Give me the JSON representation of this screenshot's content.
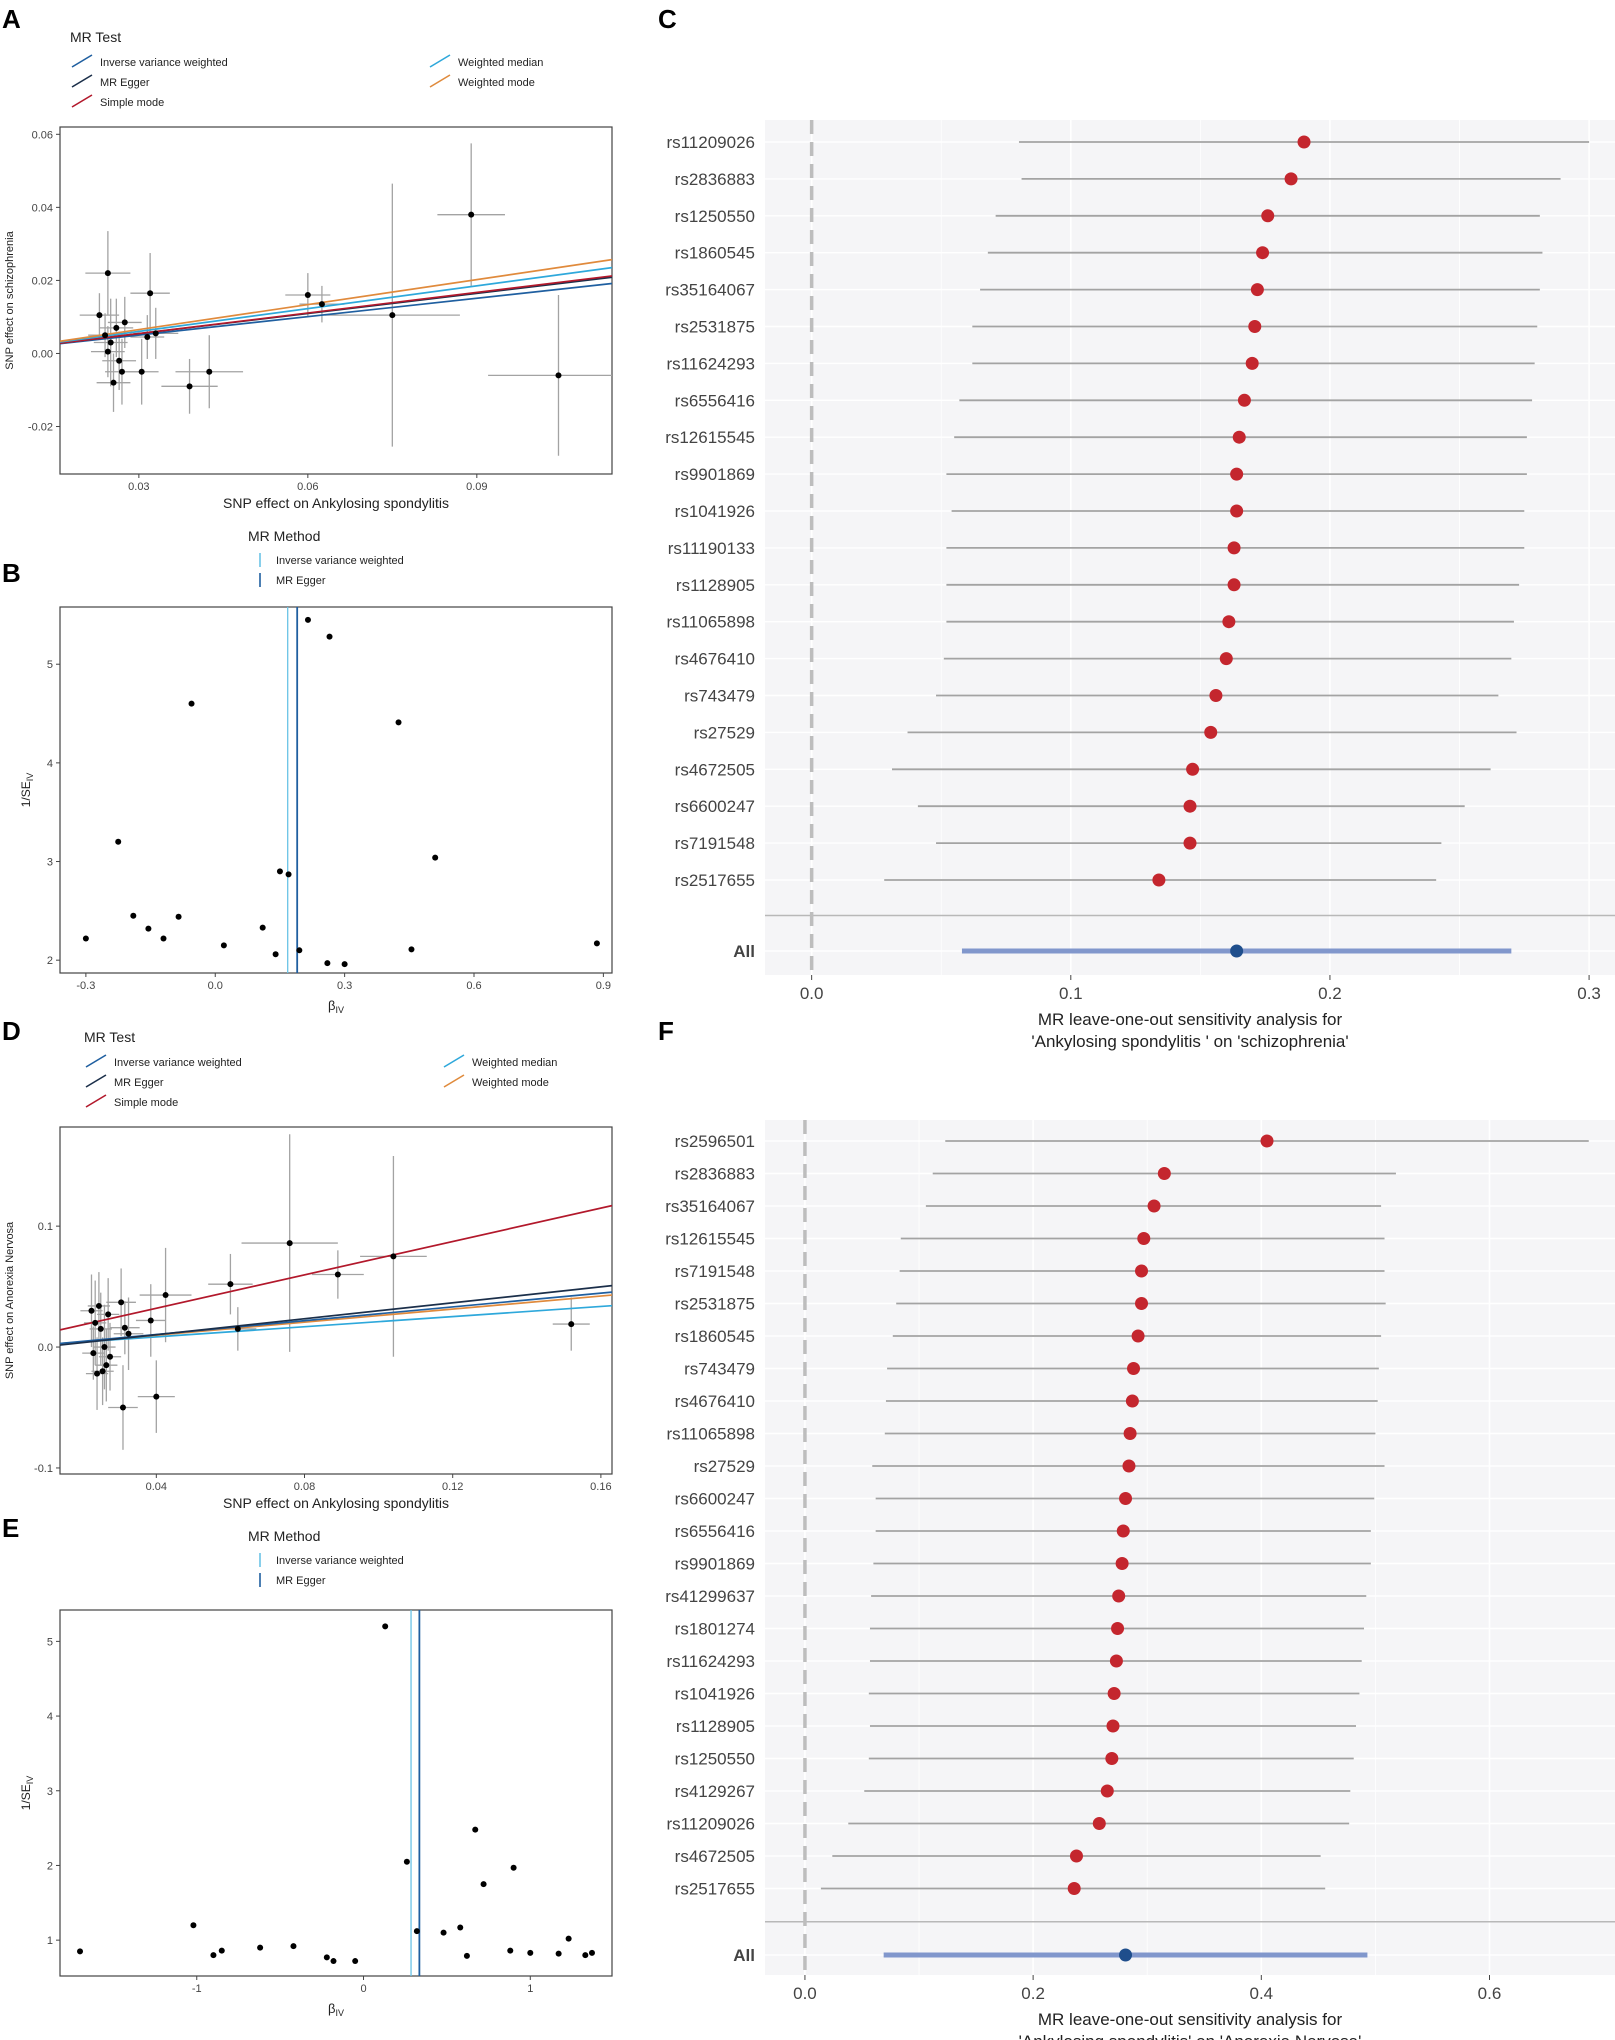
{
  "colors": {
    "ivw": "#1f5fa0",
    "egger": "#1b2f4a",
    "simple_mode": "#b2182b",
    "weighted_median": "#2ea8db",
    "weighted_mode": "#e08a3c",
    "ivw_light": "#6ac3e6",
    "red_point": "#c4262e",
    "blue_point": "#1f4e8c",
    "ci_grey": "#a3a3a3",
    "all_ci": "#8197cc",
    "funnel_point": "#000000",
    "panel_bg": "#f5f5f7"
  },
  "chart_data": [
    {
      "panel": "A",
      "type": "scatter",
      "legend_title": "MR Test",
      "legend": [
        "Inverse variance weighted",
        "MR Egger",
        "Simple mode",
        "Weighted median",
        "Weighted mode"
      ],
      "xlabel": "SNP effect on Ankylosing spondylitis",
      "ylabel": "SNP effect on schizophrenia",
      "xlim": [
        0.016,
        0.114
      ],
      "ylim": [
        -0.033,
        0.062
      ],
      "xticks": [
        "0.03",
        "0.06",
        "0.09"
      ],
      "xtick_values": [
        0.03,
        0.06,
        0.09
      ],
      "yticks": [
        "-0.02",
        "0.00",
        "0.02",
        "0.04",
        "0.06"
      ],
      "ytick_values": [
        -0.02,
        0.0,
        0.02,
        0.04,
        0.06
      ],
      "points": [
        {
          "x": 0.0245,
          "y": 0.022,
          "xse": 0.004,
          "yse": 0.0115
        },
        {
          "x": 0.023,
          "y": 0.0105,
          "xse": 0.0035,
          "yse": 0.006
        },
        {
          "x": 0.024,
          "y": 0.005,
          "xse": 0.003,
          "yse": 0.006
        },
        {
          "x": 0.0245,
          "y": 0.0005,
          "xse": 0.003,
          "yse": 0.007
        },
        {
          "x": 0.025,
          "y": 0.003,
          "xse": 0.003,
          "yse": 0.012
        },
        {
          "x": 0.0255,
          "y": -0.008,
          "xse": 0.003,
          "yse": 0.008
        },
        {
          "x": 0.026,
          "y": 0.007,
          "xse": 0.003,
          "yse": 0.008
        },
        {
          "x": 0.0265,
          "y": -0.002,
          "xse": 0.003,
          "yse": 0.008
        },
        {
          "x": 0.027,
          "y": -0.005,
          "xse": 0.003,
          "yse": 0.009
        },
        {
          "x": 0.0275,
          "y": 0.0085,
          "xse": 0.003,
          "yse": 0.007
        },
        {
          "x": 0.0305,
          "y": -0.005,
          "xse": 0.003,
          "yse": 0.009
        },
        {
          "x": 0.0315,
          "y": 0.0045,
          "xse": 0.003,
          "yse": 0.006
        },
        {
          "x": 0.032,
          "y": 0.0165,
          "xse": 0.0035,
          "yse": 0.011
        },
        {
          "x": 0.033,
          "y": 0.0055,
          "xse": 0.004,
          "yse": 0.007
        },
        {
          "x": 0.039,
          "y": -0.009,
          "xse": 0.005,
          "yse": 0.0075
        },
        {
          "x": 0.0425,
          "y": -0.005,
          "xse": 0.006,
          "yse": 0.01
        },
        {
          "x": 0.06,
          "y": 0.016,
          "xse": 0.004,
          "yse": 0.006
        },
        {
          "x": 0.0625,
          "y": 0.0135,
          "xse": 0.004,
          "yse": 0.005
        },
        {
          "x": 0.075,
          "y": 0.0105,
          "xse": 0.012,
          "yse": 0.036
        },
        {
          "x": 0.089,
          "y": 0.038,
          "xse": 0.006,
          "yse": 0.0195
        },
        {
          "x": 0.1045,
          "y": -0.006,
          "xse": 0.0125,
          "yse": 0.022
        }
      ],
      "lines": [
        {
          "name": "Inverse variance weighted",
          "intercept": 0.0,
          "slope": 0.168
        },
        {
          "name": "MR Egger",
          "intercept": -0.0001,
          "slope": 0.184
        },
        {
          "name": "Simple mode",
          "intercept": -0.0002,
          "slope": 0.188
        },
        {
          "name": "Weighted median",
          "intercept": -0.0002,
          "slope": 0.208
        },
        {
          "name": "Weighted mode",
          "intercept": -0.0003,
          "slope": 0.228
        }
      ]
    },
    {
      "panel": "B",
      "type": "scatter",
      "legend_title": "MR Method",
      "legend": [
        "Inverse variance weighted",
        "MR Egger"
      ],
      "xlabel": "β",
      "xlabel_sub": "IV",
      "ylabel": "1/SE",
      "ylabel_sub": "IV",
      "xlim": [
        -0.36,
        0.92
      ],
      "ylim": [
        1.87,
        5.58
      ],
      "xticks": [
        "-0.3",
        "0.0",
        "0.3",
        "0.6",
        "0.9"
      ],
      "xtick_values": [
        -0.3,
        0.0,
        0.3,
        0.6,
        0.9
      ],
      "yticks": [
        "2",
        "3",
        "4",
        "5"
      ],
      "ytick_values": [
        2,
        3,
        4,
        5
      ],
      "vlines": [
        {
          "name": "Inverse variance weighted",
          "x": 0.168
        },
        {
          "name": "MR Egger",
          "x": 0.19
        }
      ],
      "points": [
        {
          "x": -0.3,
          "y": 2.22
        },
        {
          "x": -0.225,
          "y": 3.2
        },
        {
          "x": -0.19,
          "y": 2.45
        },
        {
          "x": -0.155,
          "y": 2.32
        },
        {
          "x": -0.12,
          "y": 2.22
        },
        {
          "x": -0.085,
          "y": 2.44
        },
        {
          "x": -0.055,
          "y": 4.6
        },
        {
          "x": 0.02,
          "y": 2.15
        },
        {
          "x": 0.11,
          "y": 2.33
        },
        {
          "x": 0.14,
          "y": 2.06
        },
        {
          "x": 0.15,
          "y": 2.9
        },
        {
          "x": 0.17,
          "y": 2.87
        },
        {
          "x": 0.195,
          "y": 2.1
        },
        {
          "x": 0.215,
          "y": 5.45
        },
        {
          "x": 0.26,
          "y": 1.97
        },
        {
          "x": 0.265,
          "y": 5.28
        },
        {
          "x": 0.3,
          "y": 1.96
        },
        {
          "x": 0.425,
          "y": 4.41
        },
        {
          "x": 0.455,
          "y": 2.11
        },
        {
          "x": 0.51,
          "y": 3.04
        },
        {
          "x": 0.885,
          "y": 2.17
        }
      ]
    },
    {
      "panel": "C",
      "type": "forest",
      "xlabel_line1": "MR leave-one-out sensitivity analysis for",
      "xlabel_line2": "'Ankylosing spondylitis ' on 'schizophrenia'",
      "xlim": [
        -0.018,
        0.31
      ],
      "xticks": [
        "0.0",
        "0.1",
        "0.2",
        "0.3"
      ],
      "xtick_values": [
        0.0,
        0.1,
        0.2,
        0.3
      ],
      "rows": [
        {
          "label": "rs11209026",
          "est": 0.19,
          "lo": 0.08,
          "hi": 0.3
        },
        {
          "label": "rs2836883",
          "est": 0.185,
          "lo": 0.081,
          "hi": 0.289
        },
        {
          "label": "rs1250550",
          "est": 0.176,
          "lo": 0.071,
          "hi": 0.281
        },
        {
          "label": "rs1860545",
          "est": 0.174,
          "lo": 0.068,
          "hi": 0.282
        },
        {
          "label": "rs35164067",
          "est": 0.172,
          "lo": 0.065,
          "hi": 0.281
        },
        {
          "label": "rs2531875",
          "est": 0.171,
          "lo": 0.062,
          "hi": 0.28
        },
        {
          "label": "rs11624293",
          "est": 0.17,
          "lo": 0.062,
          "hi": 0.279
        },
        {
          "label": "rs6556416",
          "est": 0.167,
          "lo": 0.057,
          "hi": 0.278
        },
        {
          "label": "rs12615545",
          "est": 0.165,
          "lo": 0.055,
          "hi": 0.276
        },
        {
          "label": "rs9901869",
          "est": 0.164,
          "lo": 0.052,
          "hi": 0.276
        },
        {
          "label": "rs1041926",
          "est": 0.164,
          "lo": 0.054,
          "hi": 0.275
        },
        {
          "label": "rs11190133",
          "est": 0.163,
          "lo": 0.052,
          "hi": 0.275
        },
        {
          "label": "rs1128905",
          "est": 0.163,
          "lo": 0.052,
          "hi": 0.273
        },
        {
          "label": "rs11065898",
          "est": 0.161,
          "lo": 0.052,
          "hi": 0.271
        },
        {
          "label": "rs4676410",
          "est": 0.16,
          "lo": 0.051,
          "hi": 0.27
        },
        {
          "label": "rs743479",
          "est": 0.156,
          "lo": 0.048,
          "hi": 0.265
        },
        {
          "label": "rs27529",
          "est": 0.154,
          "lo": 0.037,
          "hi": 0.272
        },
        {
          "label": "rs4672505",
          "est": 0.147,
          "lo": 0.031,
          "hi": 0.262
        },
        {
          "label": "rs6600247",
          "est": 0.146,
          "lo": 0.041,
          "hi": 0.252
        },
        {
          "label": "rs7191548",
          "est": 0.146,
          "lo": 0.048,
          "hi": 0.243
        },
        {
          "label": "rs2517655",
          "est": 0.134,
          "lo": 0.028,
          "hi": 0.241
        }
      ],
      "all": {
        "label": "All",
        "est": 0.164,
        "lo": 0.058,
        "hi": 0.27
      }
    },
    {
      "panel": "D",
      "type": "scatter",
      "legend_title": "MR Test",
      "legend": [
        "Inverse variance weighted",
        "MR Egger",
        "Simple mode",
        "Weighted median",
        "Weighted mode"
      ],
      "xlabel": "SNP effect on Ankylosing spondylitis",
      "ylabel": "SNP effect on Anorexia Nervosa",
      "xlim": [
        0.014,
        0.163
      ],
      "ylim": [
        -0.105,
        0.182
      ],
      "xticks": [
        "0.04",
        "0.08",
        "0.12",
        "0.16"
      ],
      "xtick_values": [
        0.04,
        0.08,
        0.12,
        0.16
      ],
      "yticks": [
        "-0.1",
        "0.0",
        "0.1"
      ],
      "ytick_values": [
        -0.1,
        0.0,
        0.1
      ],
      "points": [
        {
          "x": 0.0225,
          "y": 0.03,
          "xse": 0.003,
          "yse": 0.03
        },
        {
          "x": 0.023,
          "y": -0.005,
          "xse": 0.003,
          "yse": 0.022
        },
        {
          "x": 0.0235,
          "y": 0.02,
          "xse": 0.003,
          "yse": 0.035
        },
        {
          "x": 0.024,
          "y": -0.022,
          "xse": 0.003,
          "yse": 0.03
        },
        {
          "x": 0.0245,
          "y": 0.034,
          "xse": 0.003,
          "yse": 0.028
        },
        {
          "x": 0.025,
          "y": 0.015,
          "xse": 0.003,
          "yse": 0.03
        },
        {
          "x": 0.0255,
          "y": -0.02,
          "xse": 0.003,
          "yse": 0.028
        },
        {
          "x": 0.026,
          "y": 0.0,
          "xse": 0.003,
          "yse": 0.035
        },
        {
          "x": 0.0265,
          "y": -0.015,
          "xse": 0.003,
          "yse": 0.03
        },
        {
          "x": 0.027,
          "y": 0.027,
          "xse": 0.003,
          "yse": 0.03
        },
        {
          "x": 0.0275,
          "y": -0.008,
          "xse": 0.003,
          "yse": 0.028
        },
        {
          "x": 0.0305,
          "y": 0.037,
          "xse": 0.004,
          "yse": 0.028
        },
        {
          "x": 0.031,
          "y": -0.05,
          "xse": 0.004,
          "yse": 0.035
        },
        {
          "x": 0.0315,
          "y": 0.016,
          "xse": 0.004,
          "yse": 0.022
        },
        {
          "x": 0.0325,
          "y": 0.011,
          "xse": 0.004,
          "yse": 0.03
        },
        {
          "x": 0.0385,
          "y": 0.022,
          "xse": 0.004,
          "yse": 0.03
        },
        {
          "x": 0.04,
          "y": -0.041,
          "xse": 0.005,
          "yse": 0.03
        },
        {
          "x": 0.0425,
          "y": 0.043,
          "xse": 0.007,
          "yse": 0.039
        },
        {
          "x": 0.06,
          "y": 0.052,
          "xse": 0.006,
          "yse": 0.025
        },
        {
          "x": 0.062,
          "y": 0.015,
          "xse": 0.005,
          "yse": 0.018
        },
        {
          "x": 0.076,
          "y": 0.086,
          "xse": 0.013,
          "yse": 0.09
        },
        {
          "x": 0.089,
          "y": 0.06,
          "xse": 0.007,
          "yse": 0.02
        },
        {
          "x": 0.104,
          "y": 0.075,
          "xse": 0.009,
          "yse": 0.083
        },
        {
          "x": 0.152,
          "y": 0.019,
          "xse": 0.005,
          "yse": 0.022
        }
      ],
      "lines": [
        {
          "name": "Weighted median",
          "intercept": 0.0,
          "slope": 0.21
        },
        {
          "name": "Weighted mode",
          "intercept": -0.001,
          "slope": 0.27
        },
        {
          "name": "Inverse variance weighted",
          "intercept": -0.001,
          "slope": 0.285
        },
        {
          "name": "MR Egger",
          "intercept": -0.003,
          "slope": 0.33
        },
        {
          "name": "Simple mode",
          "intercept": 0.0045,
          "slope": 0.69
        }
      ]
    },
    {
      "panel": "E",
      "type": "scatter",
      "legend_title": "MR Method",
      "legend": [
        "Inverse variance weighted",
        "MR Egger"
      ],
      "xlabel": "β",
      "xlabel_sub": "IV",
      "ylabel": "1/SE",
      "ylabel_sub": "IV",
      "xlim": [
        -1.82,
        1.49
      ],
      "ylim": [
        0.52,
        5.42
      ],
      "xticks": [
        "-1",
        "0",
        "1"
      ],
      "xtick_values": [
        -1,
        0,
        1
      ],
      "yticks": [
        "1",
        "2",
        "3",
        "4",
        "5"
      ],
      "ytick_values": [
        1,
        2,
        3,
        4,
        5
      ],
      "vlines": [
        {
          "name": "Inverse variance weighted",
          "x": 0.285
        },
        {
          "name": "MR Egger",
          "x": 0.335
        }
      ],
      "points": [
        {
          "x": -1.7,
          "y": 0.85
        },
        {
          "x": -1.02,
          "y": 1.2
        },
        {
          "x": -0.9,
          "y": 0.8
        },
        {
          "x": -0.85,
          "y": 0.86
        },
        {
          "x": -0.62,
          "y": 0.9
        },
        {
          "x": -0.42,
          "y": 0.92
        },
        {
          "x": -0.22,
          "y": 0.77
        },
        {
          "x": -0.18,
          "y": 0.72
        },
        {
          "x": -0.05,
          "y": 0.72
        },
        {
          "x": 0.13,
          "y": 5.2
        },
        {
          "x": 0.26,
          "y": 2.05
        },
        {
          "x": 0.32,
          "y": 1.12
        },
        {
          "x": 0.48,
          "y": 1.1
        },
        {
          "x": 0.58,
          "y": 1.17
        },
        {
          "x": 0.62,
          "y": 0.79
        },
        {
          "x": 0.67,
          "y": 2.48
        },
        {
          "x": 0.72,
          "y": 1.75
        },
        {
          "x": 0.88,
          "y": 0.86
        },
        {
          "x": 0.9,
          "y": 1.97
        },
        {
          "x": 1.0,
          "y": 0.83
        },
        {
          "x": 1.17,
          "y": 0.82
        },
        {
          "x": 1.23,
          "y": 1.02
        },
        {
          "x": 1.33,
          "y": 0.8
        },
        {
          "x": 1.37,
          "y": 0.83
        }
      ]
    },
    {
      "panel": "F",
      "type": "forest",
      "xlabel_line1": "MR leave-one-out sensitivity analysis for",
      "xlabel_line2": "'Ankylosing spondylitis' on 'Anorexia Nervosa'",
      "xlim": [
        -0.035,
        0.71
      ],
      "xticks": [
        "0.0",
        "0.2",
        "0.4",
        "0.6"
      ],
      "xtick_values": [
        0.0,
        0.2,
        0.4,
        0.6
      ],
      "rows": [
        {
          "label": "rs2596501",
          "est": 0.405,
          "lo": 0.123,
          "hi": 0.687
        },
        {
          "label": "rs2836883",
          "est": 0.315,
          "lo": 0.112,
          "hi": 0.518
        },
        {
          "label": "rs35164067",
          "est": 0.306,
          "lo": 0.106,
          "hi": 0.505
        },
        {
          "label": "rs12615545",
          "est": 0.297,
          "lo": 0.084,
          "hi": 0.508
        },
        {
          "label": "rs7191548",
          "est": 0.295,
          "lo": 0.083,
          "hi": 0.508
        },
        {
          "label": "rs2531875",
          "est": 0.295,
          "lo": 0.08,
          "hi": 0.509
        },
        {
          "label": "rs1860545",
          "est": 0.292,
          "lo": 0.077,
          "hi": 0.505
        },
        {
          "label": "rs743479",
          "est": 0.288,
          "lo": 0.072,
          "hi": 0.503
        },
        {
          "label": "rs4676410",
          "est": 0.287,
          "lo": 0.071,
          "hi": 0.502
        },
        {
          "label": "rs11065898",
          "est": 0.285,
          "lo": 0.07,
          "hi": 0.5
        },
        {
          "label": "rs27529",
          "est": 0.284,
          "lo": 0.059,
          "hi": 0.508
        },
        {
          "label": "rs6600247",
          "est": 0.281,
          "lo": 0.062,
          "hi": 0.499
        },
        {
          "label": "rs6556416",
          "est": 0.279,
          "lo": 0.062,
          "hi": 0.496
        },
        {
          "label": "rs9901869",
          "est": 0.278,
          "lo": 0.06,
          "hi": 0.496
        },
        {
          "label": "rs41299637",
          "est": 0.275,
          "lo": 0.058,
          "hi": 0.492
        },
        {
          "label": "rs1801274",
          "est": 0.274,
          "lo": 0.057,
          "hi": 0.49
        },
        {
          "label": "rs11624293",
          "est": 0.273,
          "lo": 0.057,
          "hi": 0.488
        },
        {
          "label": "rs1041926",
          "est": 0.271,
          "lo": 0.056,
          "hi": 0.486
        },
        {
          "label": "rs1128905",
          "est": 0.27,
          "lo": 0.057,
          "hi": 0.483
        },
        {
          "label": "rs1250550",
          "est": 0.269,
          "lo": 0.056,
          "hi": 0.481
        },
        {
          "label": "rs4129267",
          "est": 0.265,
          "lo": 0.052,
          "hi": 0.478
        },
        {
          "label": "rs11209026",
          "est": 0.258,
          "lo": 0.038,
          "hi": 0.477
        },
        {
          "label": "rs4672505",
          "est": 0.238,
          "lo": 0.024,
          "hi": 0.452
        },
        {
          "label": "rs2517655",
          "est": 0.236,
          "lo": 0.014,
          "hi": 0.456
        }
      ],
      "all": {
        "label": "All",
        "est": 0.281,
        "lo": 0.069,
        "hi": 0.493
      }
    }
  ]
}
